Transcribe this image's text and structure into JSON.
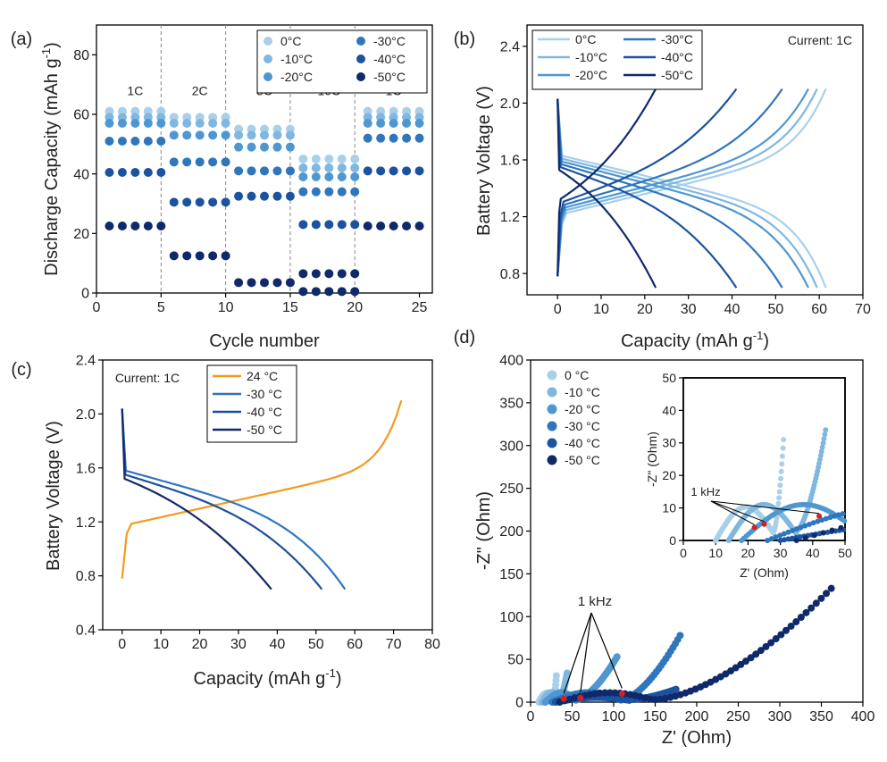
{
  "colors": {
    "c0": "#a9d0ea",
    "c10": "#7fb7e0",
    "c20": "#4e97d0",
    "c30": "#2f76bd",
    "c40": "#1b53a0",
    "c50": "#10296a",
    "orange": "#f39a1e",
    "dark30": "#2f76bd",
    "dark40": "#1f4f98",
    "dark50": "#132a66"
  },
  "chart_data": [
    {
      "type": "scatter",
      "panel_label": "(a)",
      "xlabel": "Cycle number",
      "ylabel_main": "Discharge Capacity (mAh g",
      "ylabel_sup": "-1",
      "ylabel_close": ")",
      "xlim": [
        0,
        26
      ],
      "ylim": [
        0,
        90
      ],
      "xticks": [
        "0",
        "5",
        "10",
        "15",
        "20",
        "25"
      ],
      "yticks": [
        "0",
        "20",
        "40",
        "60",
        "80"
      ],
      "rate_labels": [
        "1C",
        "2C",
        "5C",
        "10C",
        "1C"
      ],
      "legend": [
        "0°C",
        "-10°C",
        "-20°C",
        "-30°C",
        "-40°C",
        "-50°C"
      ],
      "series": [
        {
          "name": "0°C",
          "segments": [
            61,
            59,
            55,
            45,
            61
          ]
        },
        {
          "name": "-10°C",
          "segments": [
            59,
            57,
            53,
            42,
            59
          ]
        },
        {
          "name": "-20°C",
          "segments": [
            57,
            53,
            49,
            39,
            57
          ]
        },
        {
          "name": "-30°C",
          "segments": [
            51,
            44,
            41,
            34,
            52
          ]
        },
        {
          "name": "-40°C",
          "segments": [
            40.5,
            30.5,
            32.5,
            23,
            41
          ]
        },
        {
          "name": "-50°C",
          "segments": [
            22.5,
            12.5,
            3.5,
            6.5,
            22.5
          ]
        }
      ],
      "extra_points_10c": 0.5
    },
    {
      "type": "line",
      "panel_label": "(b)",
      "xlabel_main": "Capacity (mAh g",
      "xlabel_sup": "-1",
      "xlabel_close": ")",
      "ylabel": "Battery Voltage (V)",
      "annotation": "Current: 1C",
      "xlim": [
        -7,
        70
      ],
      "ylim": [
        0.65,
        2.55
      ],
      "xticks": [
        "0",
        "10",
        "20",
        "30",
        "40",
        "50",
        "60",
        "70"
      ],
      "yticks": [
        "0.8",
        "1.2",
        "1.6",
        "2.0",
        "2.4"
      ],
      "legend": [
        "0°C",
        "-10°C",
        "-20°C",
        "-30°C",
        "-40°C",
        "-50°C"
      ],
      "series": [
        {
          "name": "0°C",
          "capacity": 61.5
        },
        {
          "name": "-10°C",
          "capacity": 59.5
        },
        {
          "name": "-20°C",
          "capacity": 57.5
        },
        {
          "name": "-30°C",
          "capacity": 51.5
        },
        {
          "name": "-40°C",
          "capacity": 41
        },
        {
          "name": "-50°C",
          "capacity": 22.5
        }
      ]
    },
    {
      "type": "line",
      "panel_label": "(c)",
      "xlabel_main": "Capacity (mAh g",
      "xlabel_sup": "-1",
      "xlabel_close": ")",
      "ylabel": "Battery Voltage (V)",
      "annotation": "Current: 1C",
      "xlim": [
        -5,
        80
      ],
      "ylim": [
        0.4,
        2.4
      ],
      "xticks": [
        "0",
        "10",
        "20",
        "30",
        "40",
        "50",
        "60",
        "70",
        "80"
      ],
      "yticks": [
        "0.4",
        "0.8",
        "1.2",
        "1.6",
        "2.0",
        "2.4"
      ],
      "legend": [
        "24 °C",
        "-30 °C",
        "-40 °C",
        "-50 °C"
      ],
      "series": [
        {
          "name": "24 °C",
          "capacity": 72
        },
        {
          "name": "-30 °C",
          "capacity": 57.5
        },
        {
          "name": "-40 °C",
          "capacity": 51.5
        },
        {
          "name": "-50 °C",
          "capacity": 38.5
        }
      ]
    },
    {
      "type": "scatter",
      "panel_label": "(d)",
      "xlabel": "Z' (Ohm)",
      "ylabel": "-Z\" (Ohm)",
      "annotation": "1 kHz",
      "xlim": [
        0,
        400
      ],
      "ylim": [
        0,
        400
      ],
      "xticks": [
        "0",
        "50",
        "100",
        "150",
        "200",
        "250",
        "300",
        "350",
        "400"
      ],
      "yticks": [
        "0",
        "50",
        "100",
        "150",
        "200",
        "250",
        "300",
        "350",
        "400"
      ],
      "legend": [
        "0 °C",
        "-10 °C",
        "-20 °C",
        "-30 °C",
        "-40 °C",
        "-50 °C"
      ],
      "inset": {
        "xlabel": "Z' (Ohm)",
        "ylabel": "-Z\" (Ohm)",
        "annotation": "1 kHz",
        "xlim": [
          0,
          50
        ],
        "ylim": [
          0,
          50
        ],
        "xticks": [
          "0",
          "10",
          "20",
          "30",
          "40",
          "50"
        ],
        "yticks": [
          "0",
          "10",
          "20",
          "30",
          "40",
          "50"
        ]
      },
      "series": [
        {
          "name": "0 °C",
          "start": 10,
          "knee": 28,
          "end_x": 31,
          "end_y": 31
        },
        {
          "name": "-10 °C",
          "start": 14,
          "knee": 35,
          "end_x": 44,
          "end_y": 34
        },
        {
          "name": "-20 °C",
          "start": 18,
          "knee": 55,
          "end_x": 104,
          "end_y": 53
        },
        {
          "name": "-30 °C",
          "start": 26,
          "knee": 110,
          "end_x": 180,
          "end_y": 78
        },
        {
          "name": "-40 °C",
          "start": 30,
          "knee": 120,
          "end_x": 175,
          "end_y": 15
        },
        {
          "name": "-50 °C",
          "start": 35,
          "knee": 150,
          "end_x": 362,
          "end_y": 133
        }
      ],
      "khz_points": [
        [
          22,
          4
        ],
        [
          25,
          5
        ],
        [
          42,
          7.5
        ],
        [
          110,
          10
        ]
      ]
    }
  ]
}
